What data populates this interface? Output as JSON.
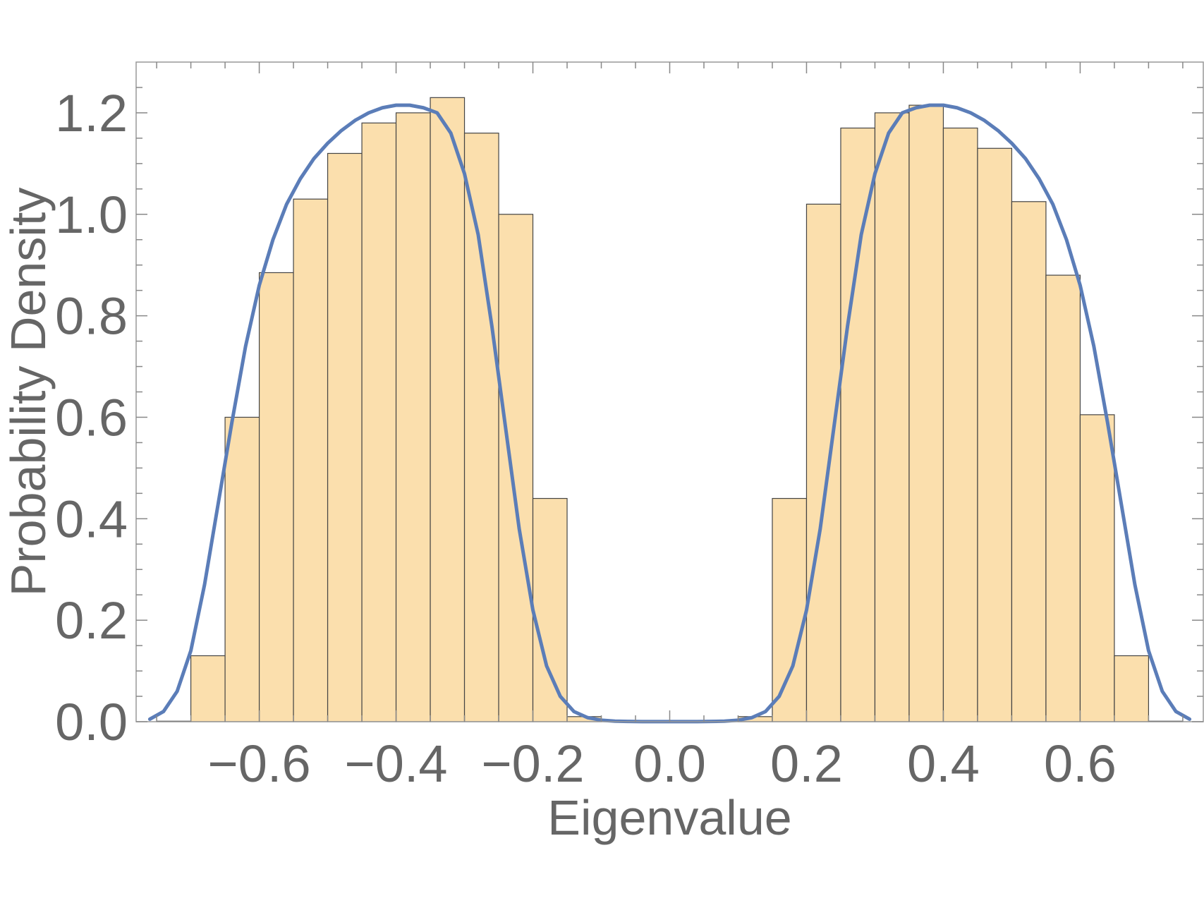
{
  "chart_data": {
    "type": "bar",
    "xlabel": "Eigenvalue",
    "ylabel": "Probability Density",
    "xlim": [
      -0.78,
      0.78
    ],
    "ylim": [
      0,
      1.3
    ],
    "grid": false,
    "x_ticks": [
      -0.6,
      -0.4,
      -0.2,
      0.0,
      0.2,
      0.4,
      0.6
    ],
    "x_tick_labels": [
      "−0.6",
      "−0.4",
      "−0.2",
      "0.0",
      "0.2",
      "0.4",
      "0.6"
    ],
    "y_ticks": [
      0.0,
      0.2,
      0.4,
      0.6,
      0.8,
      1.0,
      1.2
    ],
    "y_tick_labels": [
      "0.0",
      "0.2",
      "0.4",
      "0.6",
      "0.8",
      "1.0",
      "1.2"
    ],
    "histogram": {
      "bin_width": 0.05,
      "fill_color": "#fbdfad",
      "edge_color": "#444444",
      "bins": [
        {
          "x0": -0.75,
          "x1": -0.7,
          "value": 0.001
        },
        {
          "x0": -0.7,
          "x1": -0.65,
          "value": 0.13
        },
        {
          "x0": -0.65,
          "x1": -0.6,
          "value": 0.6
        },
        {
          "x0": -0.6,
          "x1": -0.55,
          "value": 0.885
        },
        {
          "x0": -0.55,
          "x1": -0.5,
          "value": 1.03
        },
        {
          "x0": -0.5,
          "x1": -0.45,
          "value": 1.12
        },
        {
          "x0": -0.45,
          "x1": -0.4,
          "value": 1.18
        },
        {
          "x0": -0.4,
          "x1": -0.35,
          "value": 1.2
        },
        {
          "x0": -0.35,
          "x1": -0.3,
          "value": 1.23
        },
        {
          "x0": -0.3,
          "x1": -0.25,
          "value": 1.16
        },
        {
          "x0": -0.25,
          "x1": -0.2,
          "value": 1.0
        },
        {
          "x0": -0.2,
          "x1": -0.15,
          "value": 0.44
        },
        {
          "x0": -0.15,
          "x1": -0.1,
          "value": 0.01
        },
        {
          "x0": 0.1,
          "x1": 0.15,
          "value": 0.01
        },
        {
          "x0": 0.15,
          "x1": 0.2,
          "value": 0.44
        },
        {
          "x0": 0.2,
          "x1": 0.25,
          "value": 1.02
        },
        {
          "x0": 0.25,
          "x1": 0.3,
          "value": 1.17
        },
        {
          "x0": 0.3,
          "x1": 0.35,
          "value": 1.2
        },
        {
          "x0": 0.35,
          "x1": 0.4,
          "value": 1.215
        },
        {
          "x0": 0.4,
          "x1": 0.45,
          "value": 1.17
        },
        {
          "x0": 0.45,
          "x1": 0.5,
          "value": 1.13
        },
        {
          "x0": 0.5,
          "x1": 0.55,
          "value": 1.025
        },
        {
          "x0": 0.55,
          "x1": 0.6,
          "value": 0.88
        },
        {
          "x0": 0.6,
          "x1": 0.65,
          "value": 0.605
        },
        {
          "x0": 0.65,
          "x1": 0.7,
          "value": 0.13
        },
        {
          "x0": 0.7,
          "x1": 0.75,
          "value": 0.001
        }
      ]
    },
    "density_curve": {
      "color": "#5b7db8",
      "x": [
        -0.76,
        -0.74,
        -0.72,
        -0.7,
        -0.68,
        -0.66,
        -0.64,
        -0.62,
        -0.6,
        -0.58,
        -0.56,
        -0.54,
        -0.52,
        -0.5,
        -0.48,
        -0.46,
        -0.44,
        -0.42,
        -0.4,
        -0.38,
        -0.36,
        -0.34,
        -0.32,
        -0.3,
        -0.28,
        -0.26,
        -0.24,
        -0.22,
        -0.2,
        -0.18,
        -0.16,
        -0.14,
        -0.12,
        -0.1,
        -0.08,
        -0.06,
        -0.04,
        -0.02,
        0.0,
        0.02,
        0.04,
        0.06,
        0.08,
        0.1,
        0.12,
        0.14,
        0.16,
        0.18,
        0.2,
        0.22,
        0.24,
        0.26,
        0.28,
        0.3,
        0.32,
        0.34,
        0.36,
        0.38,
        0.4,
        0.42,
        0.44,
        0.46,
        0.48,
        0.5,
        0.52,
        0.54,
        0.56,
        0.58,
        0.6,
        0.62,
        0.64,
        0.66,
        0.68,
        0.7,
        0.72,
        0.74,
        0.76
      ],
      "y": [
        0.005,
        0.02,
        0.06,
        0.14,
        0.27,
        0.43,
        0.59,
        0.74,
        0.86,
        0.95,
        1.02,
        1.07,
        1.11,
        1.14,
        1.165,
        1.185,
        1.2,
        1.21,
        1.215,
        1.215,
        1.21,
        1.2,
        1.16,
        1.08,
        0.96,
        0.78,
        0.58,
        0.38,
        0.22,
        0.11,
        0.05,
        0.02,
        0.008,
        0.003,
        0.001,
        0.0005,
        0.0002,
        0.0001,
        0.0001,
        0.0001,
        0.0002,
        0.0005,
        0.001,
        0.003,
        0.008,
        0.02,
        0.05,
        0.11,
        0.22,
        0.38,
        0.58,
        0.78,
        0.96,
        1.08,
        1.16,
        1.2,
        1.21,
        1.215,
        1.215,
        1.21,
        1.2,
        1.185,
        1.165,
        1.14,
        1.11,
        1.07,
        1.02,
        0.95,
        0.86,
        0.74,
        0.59,
        0.43,
        0.27,
        0.14,
        0.06,
        0.02,
        0.005
      ]
    }
  }
}
